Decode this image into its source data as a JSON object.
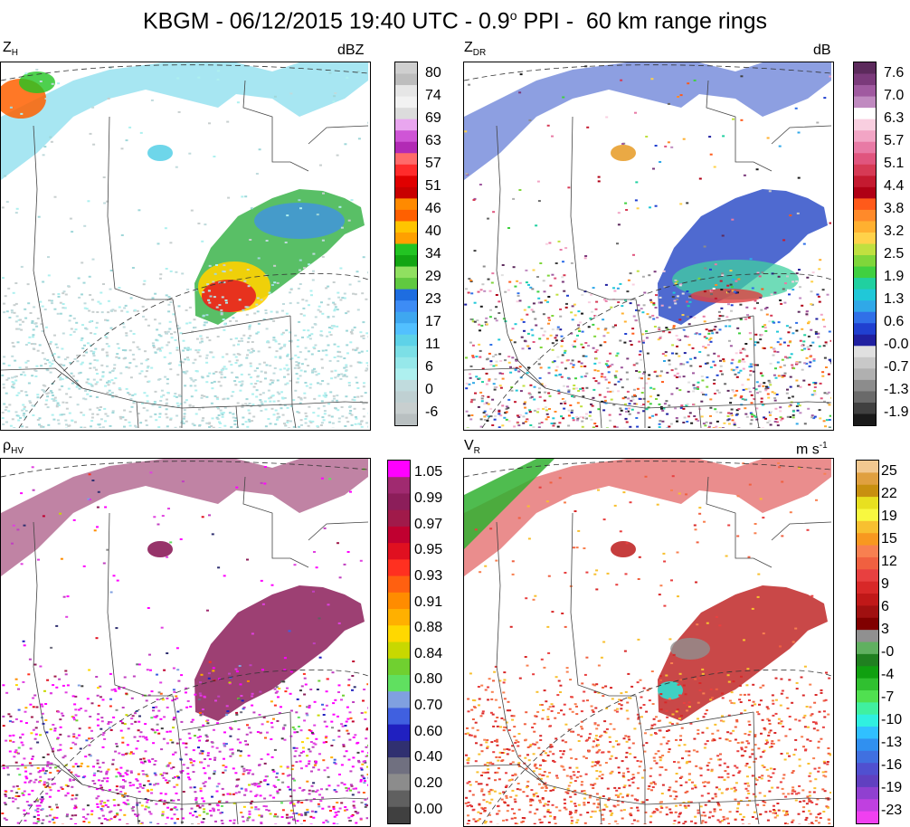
{
  "title": {
    "main": "KBGM - 06/12/2015 19:40 UTC - 0.9",
    "deg": "o",
    "rest": " PPI -  60 km range rings"
  },
  "panels": [
    {
      "id": "zh",
      "label_main": "Z",
      "label_sub": "H",
      "units_main": "dBZ",
      "units_sup": "",
      "ticks": [
        "80",
        "74",
        "69",
        "63",
        "57",
        "51",
        "46",
        "40",
        "34",
        "29",
        "23",
        "17",
        "11",
        "6",
        "0",
        "-6"
      ],
      "colors": [
        "#cfcfcf",
        "#bdbdbd",
        "#e6e6e6",
        "#f2f2f2",
        "#dcdcdc",
        "#e9a6ef",
        "#cf55d6",
        "#b22ab5",
        "#ff6a6a",
        "#ff2b2b",
        "#e00000",
        "#c80000",
        "#ff8a00",
        "#ff6000",
        "#ffc400",
        "#ffa000",
        "#22c422",
        "#12a512",
        "#90e060",
        "#60c940",
        "#1e6de0",
        "#3d8cf5",
        "#3ea7f0",
        "#52c0ff",
        "#5ed2e8",
        "#7cdfe6",
        "#96e8ea",
        "#aef0ef",
        "#c0dbdd",
        "#bfd0d2",
        "#c8cfcf",
        "#b9c0c1"
      ]
    },
    {
      "id": "zdr",
      "label_main": "Z",
      "label_sub": "DR",
      "units_main": "dB",
      "units_sup": "",
      "ticks": [
        "7.6",
        "7.0",
        "6.3",
        "5.7",
        "5.1",
        "4.4",
        "3.8",
        "3.2",
        "2.5",
        "1.9",
        "1.3",
        "0.6",
        "-0.0",
        "-0.7",
        "-1.3",
        "-1.9"
      ],
      "colors": [
        "#5c2a5c",
        "#7b3a7b",
        "#a05aa0",
        "#c08ac0",
        "#ffffff",
        "#f9cfe0",
        "#f2a5c5",
        "#e87aa5",
        "#e0557e",
        "#d63a55",
        "#c41a30",
        "#b00015",
        "#ff5a1a",
        "#ff8a2a",
        "#ffb030",
        "#ffd24a",
        "#c0e040",
        "#7fd63a",
        "#40d040",
        "#20d0a0",
        "#20c8d8",
        "#30a8e8",
        "#3070e8",
        "#2040d0",
        "#2020a0",
        "#e0e0e0",
        "#c8c8c8",
        "#b0b0b0",
        "#8c8c8c",
        "#6a6a6a",
        "#404040",
        "#1a1a1a"
      ]
    },
    {
      "id": "rhohv",
      "label_main": "ρ",
      "label_sub": "HV",
      "units_main": "",
      "units_sup": "",
      "ticks": [
        "1.05",
        "0.99",
        "0.97",
        "0.95",
        "0.93",
        "0.91",
        "0.88",
        "0.84",
        "0.80",
        "0.70",
        "0.60",
        "0.40",
        "0.20",
        "0.00"
      ],
      "colors": [
        "#ff00ff",
        "#a02a70",
        "#8c1e5a",
        "#a01a4a",
        "#c00030",
        "#e01020",
        "#ff3020",
        "#ff6010",
        "#ff8c00",
        "#ffb000",
        "#ffd800",
        "#c8d800",
        "#70d030",
        "#60e060",
        "#80a0e0",
        "#4060e0",
        "#2020c0",
        "#303070",
        "#707080",
        "#8c8c8c",
        "#606060",
        "#404040"
      ]
    },
    {
      "id": "vr",
      "label_main": "V",
      "label_sub": "R",
      "units_main": "m s",
      "units_sup": "-1",
      "ticks": [
        "25",
        "22",
        "19",
        "15",
        "12",
        "9",
        "6",
        "3",
        "-0",
        "-4",
        "-7",
        "-10",
        "-13",
        "-16",
        "-19",
        "-23"
      ],
      "colors": [
        "#f2c890",
        "#e0a040",
        "#c89010",
        "#e8e020",
        "#f8f840",
        "#f8c030",
        "#f89820",
        "#f88050",
        "#f06040",
        "#e84040",
        "#d82828",
        "#c01818",
        "#a01010",
        "#800000",
        "#909090",
        "#60b060",
        "#208020",
        "#10a010",
        "#30c030",
        "#50e050",
        "#40f0a0",
        "#30f0e0",
        "#30c0ff",
        "#3090f0",
        "#4070e0",
        "#5050d0",
        "#6040c0",
        "#9040d0",
        "#c040e0",
        "#f040f0"
      ]
    }
  ]
}
